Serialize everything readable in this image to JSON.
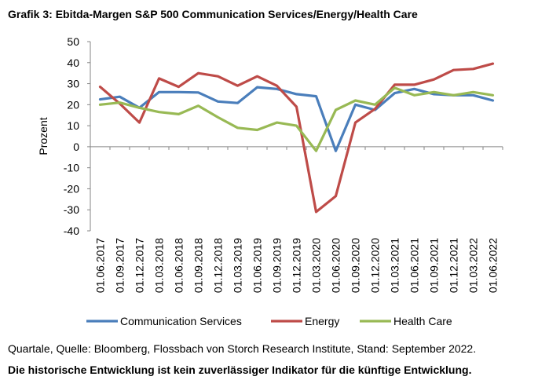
{
  "title": "Grafik 3: Ebitda-Margen S&P 500 Communication Services/Energy/Health Care",
  "source": "Quartale, Quelle: Bloomberg, Flossbach von Storch Research Institute, Stand: September 2022.",
  "disclaimer": "Die historische Entwicklung ist kein zuverlässiger Indikator für die künftige Entwicklung.",
  "chart_data": {
    "type": "line",
    "title": "Grafik 3: Ebitda-Margen S&P 500 Communication Services/Energy/Health Care",
    "xlabel": "",
    "ylabel": "Prozent",
    "ylim": [
      -40,
      50
    ],
    "yticks": [
      -40,
      -30,
      -20,
      -10,
      0,
      10,
      20,
      30,
      40,
      50
    ],
    "grid": false,
    "legend_position": "bottom",
    "x_tick_labels": [
      "01.06.2017",
      "01.09.2017",
      "01.12.2017",
      "01.03.2018",
      "01.06.2018",
      "01.09.2018",
      "01.12.2018",
      "01.03.2019",
      "01.06.2019",
      "01.09.2019",
      "01.12.2019",
      "01.03.2020",
      "01.06.2020",
      "01.09.2020",
      "01.12.2020",
      "01.03.2021",
      "01.06.2021",
      "01.09.2021",
      "01.12.2021",
      "01.03.2022",
      "01.06.2022"
    ],
    "x": [
      "01.06.2017",
      "01.09.2017",
      "01.12.2017",
      "01.03.2018",
      "01.06.2018",
      "01.09.2018",
      "01.12.2018",
      "01.03.2019",
      "01.06.2019",
      "01.09.2019",
      "01.12.2019",
      "01.03.2020",
      "01.06.2020",
      "01.09.2020",
      "01.12.2020",
      "01.03.2021",
      "01.06.2021",
      "01.09.2021",
      "01.12.2021",
      "01.03.2022",
      "01.06.2022"
    ],
    "series": [
      {
        "name": "Communication Services",
        "color": "#4a7ebb",
        "values": [
          22.5,
          23.8,
          18.5,
          26,
          26,
          25.8,
          21.5,
          20.8,
          28.3,
          27.5,
          25,
          24,
          -2,
          20,
          17.5,
          25.5,
          27.5,
          25,
          24.5,
          24.5,
          22
        ]
      },
      {
        "name": "Energy",
        "color": "#be4b48",
        "values": [
          28.5,
          20.5,
          11.5,
          32.5,
          28.5,
          35,
          33.5,
          29,
          33.5,
          29,
          19,
          -31,
          -23.5,
          11.5,
          18,
          29.5,
          29.5,
          32,
          36.5,
          37,
          39.5
        ]
      },
      {
        "name": "Health Care",
        "color": "#98b954",
        "values": [
          20,
          21,
          18.5,
          16.5,
          15.5,
          19.5,
          14,
          9,
          8,
          11.5,
          10,
          -2,
          17.5,
          22,
          20,
          28,
          24.5,
          26,
          24.5,
          26,
          24.5
        ]
      }
    ]
  }
}
